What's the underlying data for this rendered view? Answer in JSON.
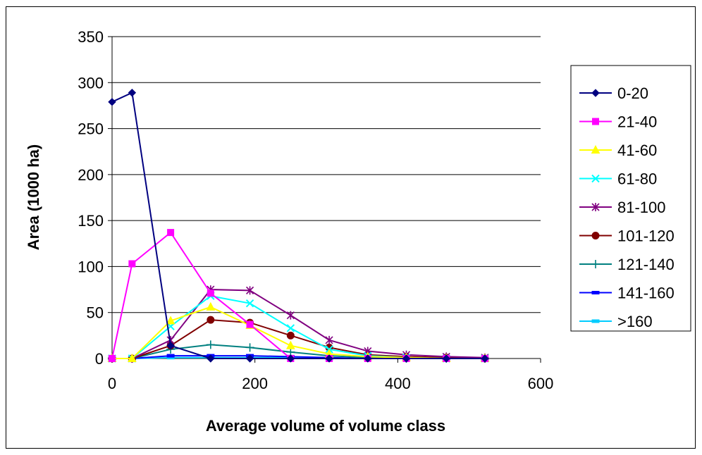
{
  "chart_data": {
    "type": "line",
    "title": "",
    "xlabel": "Average volume of volume class",
    "ylabel": "Area (1000 ha)",
    "xlim": [
      0,
      600
    ],
    "ylim": [
      0,
      350
    ],
    "xticks": [
      "0",
      "200",
      "400",
      "600"
    ],
    "yticks": [
      "0",
      "50",
      "100",
      "150",
      "200",
      "250",
      "300",
      "350"
    ],
    "grid": "horizontal",
    "legend_position": "right",
    "x": [
      0,
      28,
      82,
      138,
      193,
      250,
      304,
      358,
      412,
      468,
      522
    ],
    "series": [
      {
        "name": "0-20",
        "color": "#000080",
        "marker": "diamond",
        "values": [
          279,
          289,
          14,
          0,
          0,
          0,
          0,
          0,
          0,
          0,
          0
        ]
      },
      {
        "name": "21-40",
        "color": "#FF00FF",
        "marker": "square",
        "values": [
          0,
          103,
          137,
          71,
          37,
          0,
          0,
          0,
          0,
          0,
          0
        ]
      },
      {
        "name": "41-60",
        "color": "#FFFF00",
        "marker": "triangle",
        "values": [
          0,
          0,
          41,
          56,
          36,
          14,
          5,
          2,
          1,
          0,
          0
        ]
      },
      {
        "name": "61-80",
        "color": "#00FFFF",
        "marker": "x",
        "values": [
          0,
          0,
          35,
          68,
          60,
          33,
          10,
          3,
          1,
          0,
          0
        ]
      },
      {
        "name": "81-100",
        "color": "#800080",
        "marker": "star",
        "values": [
          0,
          0,
          20,
          75,
          74,
          47,
          20,
          8,
          4,
          2,
          1
        ]
      },
      {
        "name": "101-120",
        "color": "#800000",
        "marker": "circle",
        "values": [
          0,
          0,
          14,
          42,
          39,
          25,
          12,
          4,
          2,
          1,
          0
        ]
      },
      {
        "name": "121-140",
        "color": "#008080",
        "marker": "plus",
        "values": [
          0,
          0,
          10,
          15,
          12,
          7,
          3,
          1,
          0,
          0,
          0
        ]
      },
      {
        "name": "141-160",
        "color": "#0000FF",
        "marker": "dash",
        "values": [
          0,
          0,
          3,
          3,
          3,
          2,
          1,
          0,
          0,
          0,
          0
        ]
      },
      {
        "name": ">160",
        "color": "#00CCFF",
        "marker": "dash",
        "values": [
          0,
          0,
          1,
          1,
          1,
          1,
          0,
          0,
          0,
          0,
          0
        ]
      }
    ]
  }
}
